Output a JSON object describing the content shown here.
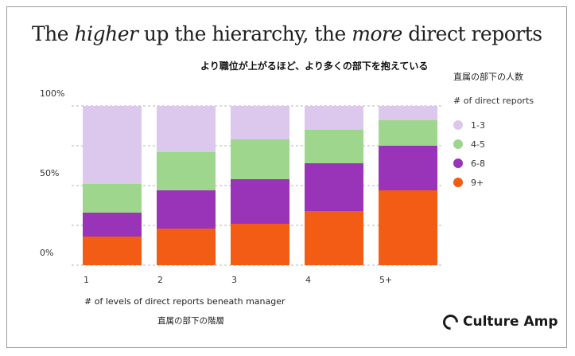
{
  "title": {
    "part1": "The ",
    "em1": "higher",
    "part2": " up the hierarchy, the ",
    "em2": "more",
    "part3": " direct reports"
  },
  "subtitle_jp": "より職位が上がるほど、より多くの部下を抱えている",
  "legend": {
    "jp_title": "直属の部下の人数",
    "title": "# of direct reports",
    "items": [
      {
        "label": "1-3",
        "color": "#dcc8ec"
      },
      {
        "label": "4-5",
        "color": "#9fd68d"
      },
      {
        "label": "6-8",
        "color": "#9933b8"
      },
      {
        "label": "9+",
        "color": "#f25c14"
      }
    ]
  },
  "xlabel": "# of levels of direct reports beneath manager",
  "xlabel_jp": "直属の部下の階層",
  "logo": "Culture Amp",
  "chart_data": {
    "type": "bar",
    "stacked": true,
    "categories": [
      "1",
      "2",
      "3",
      "4",
      "5+"
    ],
    "series": [
      {
        "name": "9+",
        "color": "#f25c14",
        "values": [
          18,
          23,
          26,
          34,
          47
        ]
      },
      {
        "name": "6-8",
        "color": "#9933b8",
        "values": [
          15,
          24,
          28,
          30,
          28
        ]
      },
      {
        "name": "4-5",
        "color": "#9fd68d",
        "values": [
          18,
          24,
          25,
          21,
          16
        ]
      },
      {
        "name": "1-3",
        "color": "#dcc8ec",
        "values": [
          49,
          29,
          21,
          15,
          9
        ]
      }
    ],
    "yticks": [
      {
        "label": "100%",
        "value": 100
      },
      {
        "label": "50%",
        "value": 50
      },
      {
        "label": "0%",
        "value": 0
      }
    ],
    "ylim": [
      0,
      100
    ],
    "gridlines": [
      0,
      25,
      50,
      75,
      100
    ]
  }
}
